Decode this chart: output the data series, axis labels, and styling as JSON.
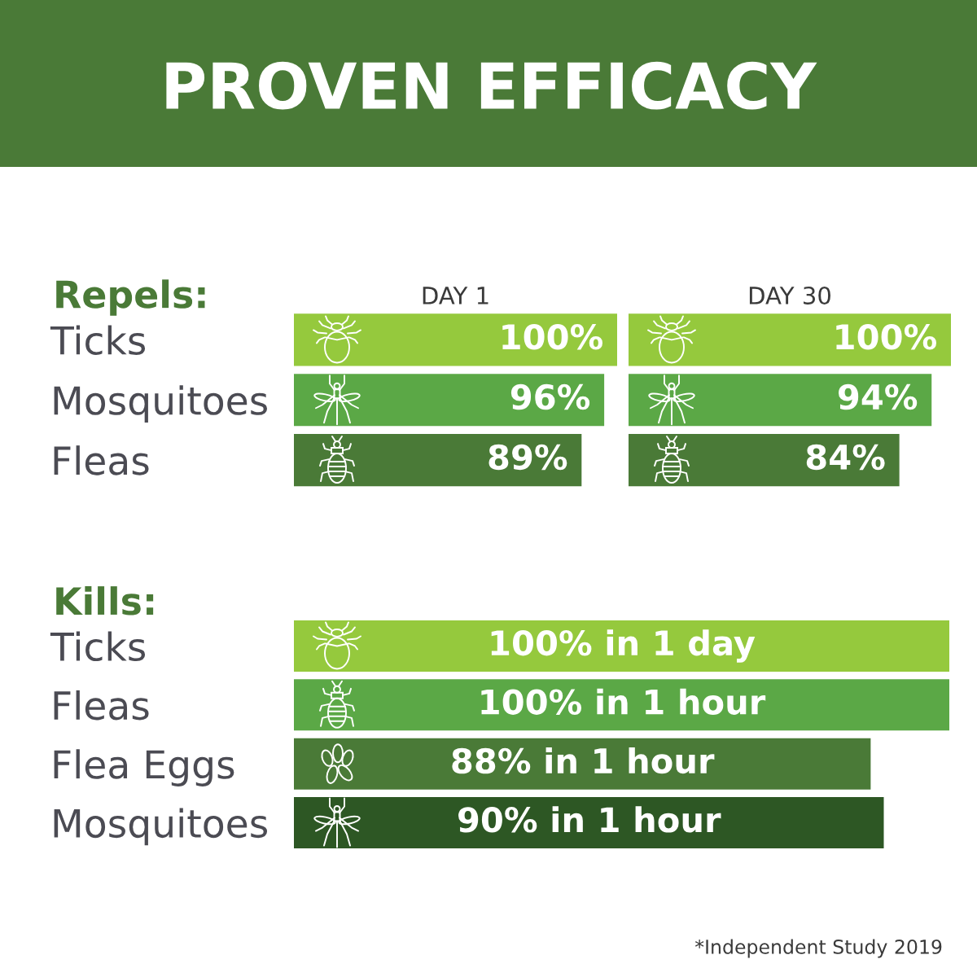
{
  "chart_data": [
    {
      "type": "other",
      "title": "PROVEN EFFICACY"
    },
    {
      "type": "bar",
      "orientation": "horizontal",
      "title": "DAY 1",
      "ylabel": "Repels:",
      "categories": [
        "Ticks",
        "Mosquitoes",
        "Fleas"
      ],
      "values": [
        100,
        96,
        89
      ],
      "value_labels": [
        "100%",
        "96%",
        "89%"
      ],
      "colors": [
        "#95c93d",
        "#5ba846",
        "#4a7a37"
      ],
      "tick_labels": "y"
    },
    {
      "type": "bar",
      "orientation": "horizontal",
      "title": "DAY 30",
      "categories": [
        null,
        null,
        null
      ],
      "values": [
        100,
        94,
        84
      ],
      "value_labels": [
        "100%",
        "94%",
        "84%"
      ],
      "colors": [
        "#95c93d",
        "#5ba846",
        "#4a7a37"
      ],
      "tick_labels": false
    },
    {
      "type": "bar",
      "orientation": "horizontal",
      "ylabel": "Kills:",
      "categories": [
        "Ticks",
        "Fleas",
        "Flea Eggs",
        "Mosquitoes"
      ],
      "values": [
        100,
        100,
        88,
        90
      ],
      "value_labels": [
        "100% in 1 day",
        "100% in 1 hour",
        "88% in 1 hour",
        "90% in 1 hour"
      ],
      "colors": [
        "#95c93d",
        "#5ba846",
        "#4a7a37",
        "#2d5724"
      ],
      "tick_labels": "y",
      "annotations": [
        "*Independent Study 2019"
      ]
    }
  ]
}
